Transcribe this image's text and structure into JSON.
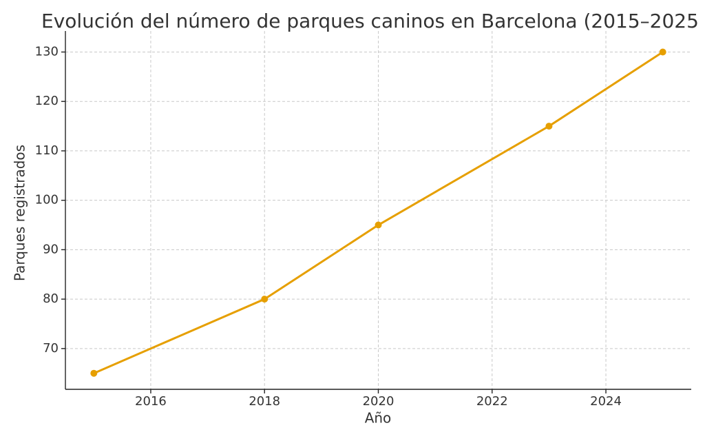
{
  "chart_data": {
    "type": "line",
    "title": "Evolución del número de parques caninos en Barcelona (2015–2025",
    "x_label": "Año",
    "y_label": "Parques registrados",
    "x": [
      2015,
      2018,
      2020,
      2023,
      2025
    ],
    "series": [
      {
        "name": "Parques registrados",
        "color": "#e69f00",
        "values": [
          65,
          80,
          95,
          115,
          130
        ]
      }
    ],
    "xlim": [
      2014.5,
      2025.5
    ],
    "xticks": [
      2016,
      2018,
      2020,
      2022,
      2024
    ],
    "ylim": [
      61.75,
      134.25
    ],
    "yticks": [
      70,
      80,
      90,
      100,
      110,
      120,
      130
    ],
    "grid": true
  }
}
